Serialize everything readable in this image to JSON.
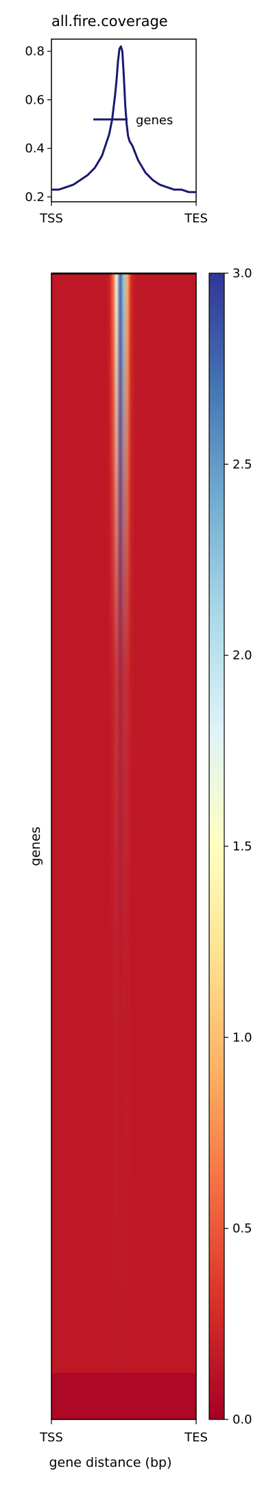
{
  "chart_data": [
    {
      "type": "line",
      "title": "all.fire.coverage",
      "xlabel": "",
      "ylabel": "",
      "x_tick_labels": [
        "TSS",
        "TES"
      ],
      "y_ticks": [
        0.2,
        0.4,
        0.6,
        0.8
      ],
      "y_tick_labels": [
        "0.2",
        "0.4",
        "0.6",
        "0.8"
      ],
      "ylim": [
        0.18,
        0.85
      ],
      "xlim": [
        0,
        1
      ],
      "legend": {
        "position": "center-right",
        "entries": [
          "genes"
        ]
      },
      "grid": false,
      "series": [
        {
          "name": "genes",
          "color": "#191970",
          "x": [
            0.0,
            0.05,
            0.1,
            0.15,
            0.2,
            0.25,
            0.3,
            0.35,
            0.4,
            0.42,
            0.44,
            0.45,
            0.46,
            0.47,
            0.48,
            0.49,
            0.5,
            0.51,
            0.52,
            0.53,
            0.54,
            0.55,
            0.56,
            0.58,
            0.6,
            0.65,
            0.7,
            0.75,
            0.8,
            0.85,
            0.9,
            0.95,
            1.0
          ],
          "values": [
            0.23,
            0.23,
            0.24,
            0.25,
            0.27,
            0.29,
            0.32,
            0.37,
            0.46,
            0.52,
            0.62,
            0.68,
            0.76,
            0.81,
            0.82,
            0.8,
            0.7,
            0.58,
            0.5,
            0.45,
            0.43,
            0.42,
            0.41,
            0.38,
            0.35,
            0.3,
            0.27,
            0.25,
            0.24,
            0.23,
            0.23,
            0.22,
            0.22
          ]
        }
      ]
    },
    {
      "type": "heatmap",
      "xlabel": "gene distance (bp)",
      "ylabel": "genes",
      "x_tick_labels": [
        "TSS",
        "TES"
      ],
      "colorbar": {
        "min": 0.0,
        "max": 3.0,
        "ticks": [
          0.0,
          0.5,
          1.0,
          1.5,
          2.0,
          2.5,
          3.0
        ],
        "tick_labels": [
          "0.0",
          "0.5",
          "1.0",
          "1.5",
          "2.0",
          "2.5",
          "3.0"
        ],
        "colormap": [
          "#a50026",
          "#d73027",
          "#f46d43",
          "#fdae61",
          "#fee090",
          "#ffffbf",
          "#e0f3f8",
          "#abd9e9",
          "#74add1",
          "#4575b4",
          "#313695"
        ]
      },
      "profile": {
        "background_value": 0.15,
        "bottom_band_value": 0.05,
        "center_peak_top": 2.8,
        "center_peak_bottom": 0.35
      }
    }
  ]
}
